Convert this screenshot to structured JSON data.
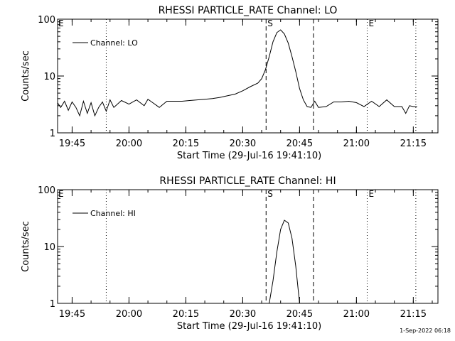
{
  "footer": {
    "datestamp": "1-Sep-2022 06:18"
  },
  "markers": {
    "start_label": "S",
    "end_label": "E"
  },
  "chart_data": [
    {
      "type": "line",
      "title": "RHESSI PARTICLE_RATE Channel: LO",
      "xlabel": "Start Time (29-Jul-16 19:41:10)",
      "ylabel": "Counts/sec",
      "yscale": "log",
      "ylim": [
        1,
        100
      ],
      "xlim": [
        "19:41:10",
        "21:21:30"
      ],
      "x_ticks": [
        "19:45",
        "20:00",
        "20:15",
        "20:30",
        "20:45",
        "21:00",
        "21:15"
      ],
      "y_ticks": [
        "1",
        "10",
        "100"
      ],
      "legend": "top-left",
      "series": [
        {
          "name": "Channel: LO",
          "x": [
            "19:41",
            "19:42",
            "19:43",
            "19:44",
            "19:45",
            "19:46",
            "19:47",
            "19:48",
            "19:49",
            "19:50",
            "19:51",
            "19:52",
            "19:53",
            "19:54",
            "19:55",
            "19:56",
            "19:58",
            "20:00",
            "20:02",
            "20:04",
            "20:05",
            "20:06",
            "20:08",
            "20:10",
            "20:12",
            "20:14",
            "20:16",
            "20:18",
            "20:20",
            "20:22",
            "20:24",
            "20:26",
            "20:28",
            "20:30",
            "20:32",
            "20:34",
            "20:35",
            "20:36",
            "20:37",
            "20:38",
            "20:39",
            "20:40",
            "20:41",
            "20:42",
            "20:43",
            "20:44",
            "20:45",
            "20:46",
            "20:47",
            "20:48",
            "20:49",
            "20:50",
            "20:52",
            "20:54",
            "20:56",
            "20:58",
            "21:00",
            "21:02",
            "21:04",
            "21:06",
            "21:08",
            "21:10",
            "21:12",
            "21:13",
            "21:14",
            "21:15",
            "21:16"
          ],
          "values": [
            3.5,
            2.8,
            3.6,
            2.5,
            3.5,
            2.8,
            2.0,
            3.6,
            2.2,
            3.4,
            2.0,
            2.8,
            3.5,
            2.4,
            3.8,
            2.8,
            3.7,
            3.2,
            3.8,
            3.0,
            3.9,
            3.5,
            2.8,
            3.6,
            3.6,
            3.6,
            3.7,
            3.8,
            3.9,
            4.0,
            4.2,
            4.5,
            4.8,
            5.5,
            6.5,
            7.5,
            9,
            13,
            22,
            40,
            58,
            65,
            55,
            38,
            22,
            12,
            6,
            3.8,
            2.9,
            2.8,
            3.6,
            2.8,
            2.9,
            3.5,
            3.5,
            3.6,
            3.4,
            2.9,
            3.6,
            2.9,
            3.8,
            2.9,
            2.9,
            2.2,
            3.0,
            2.9,
            2.9
          ]
        }
      ]
    },
    {
      "type": "line",
      "title": "RHESSI PARTICLE_RATE Channel: HI",
      "xlabel": "Start Time (29-Jul-16 19:41:10)",
      "ylabel": "Counts/sec",
      "yscale": "log",
      "ylim": [
        1,
        100
      ],
      "xlim": [
        "19:41:10",
        "21:21:30"
      ],
      "x_ticks": [
        "19:45",
        "20:00",
        "20:15",
        "20:30",
        "20:45",
        "21:00",
        "21:15"
      ],
      "y_ticks": [
        "1",
        "10",
        "100"
      ],
      "legend": "top-left",
      "series": [
        {
          "name": "Channel: HI",
          "x": [
            "20:37",
            "20:38",
            "20:39",
            "20:40",
            "20:41",
            "20:42",
            "20:43",
            "20:44",
            "20:45"
          ],
          "values": [
            1.0,
            2.5,
            8,
            20,
            29,
            26,
            14,
            4.5,
            1.0
          ]
        }
      ]
    }
  ]
}
